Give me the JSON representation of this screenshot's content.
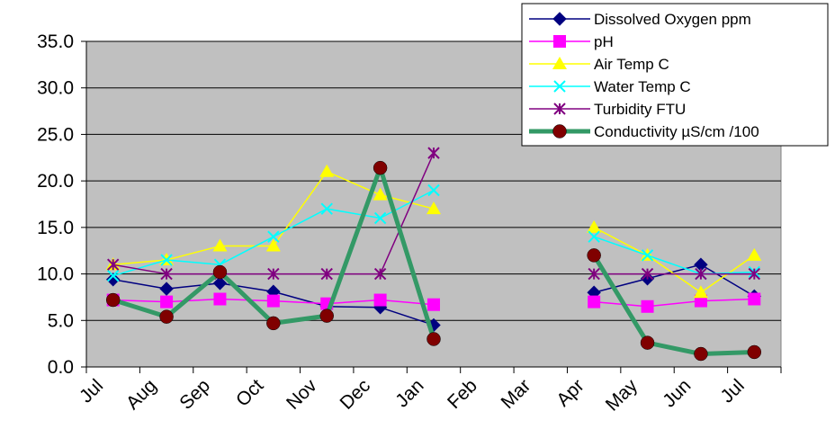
{
  "chart_data": {
    "type": "line",
    "title": "",
    "xlabel": "",
    "ylabel": "",
    "categories": [
      "Jul",
      "Aug",
      "Sep",
      "Oct",
      "Nov",
      "Dec",
      "Jan",
      "Feb",
      "Mar",
      "Apr",
      "May",
      "Jun",
      "Jul"
    ],
    "ylim": [
      0,
      35
    ],
    "yticks": [
      "0.0",
      "5.0",
      "10.0",
      "15.0",
      "20.0",
      "25.0",
      "30.0",
      "35.0"
    ],
    "grid": "horizontal",
    "plot_background": "#c0c0c0",
    "legend_position": "top-right",
    "series": [
      {
        "name": "Dissolved Oxygen ppm",
        "color": "#000080",
        "marker": "diamond",
        "values": [
          9.4,
          8.4,
          9.0,
          8.1,
          6.5,
          6.4,
          4.5,
          null,
          null,
          8.0,
          9.5,
          11.0,
          7.6
        ]
      },
      {
        "name": "pH",
        "color": "#ff00ff",
        "marker": "square",
        "values": [
          7.2,
          7.0,
          7.3,
          7.1,
          6.8,
          7.2,
          6.7,
          null,
          null,
          7.0,
          6.5,
          7.1,
          7.3
        ]
      },
      {
        "name": "Air Temp C",
        "color": "#ffff00",
        "marker": "triangle",
        "values": [
          11.0,
          11.5,
          13.0,
          13.0,
          21.0,
          18.5,
          17.0,
          null,
          null,
          15.0,
          12.0,
          8.0,
          12.0
        ]
      },
      {
        "name": "Water Temp C",
        "color": "#00ffff",
        "marker": "x",
        "values": [
          9.8,
          11.5,
          11.0,
          14.0,
          17.0,
          16.0,
          19.0,
          null,
          null,
          14.0,
          12.0,
          10.0,
          10.2
        ]
      },
      {
        "name": "Turbidity FTU",
        "color": "#800080",
        "marker": "asterisk",
        "values": [
          11.0,
          10.0,
          10.0,
          10.0,
          10.0,
          10.0,
          23.0,
          null,
          null,
          10.0,
          10.0,
          10.0,
          10.0
        ]
      },
      {
        "name": "Conductivity µS/cm /100",
        "color": "#339966",
        "marker_color": "#800000",
        "marker": "circle",
        "thick": true,
        "values": [
          7.2,
          5.4,
          10.2,
          4.7,
          5.5,
          21.4,
          3.0,
          null,
          null,
          12.0,
          2.6,
          1.4,
          1.6
        ]
      }
    ]
  }
}
